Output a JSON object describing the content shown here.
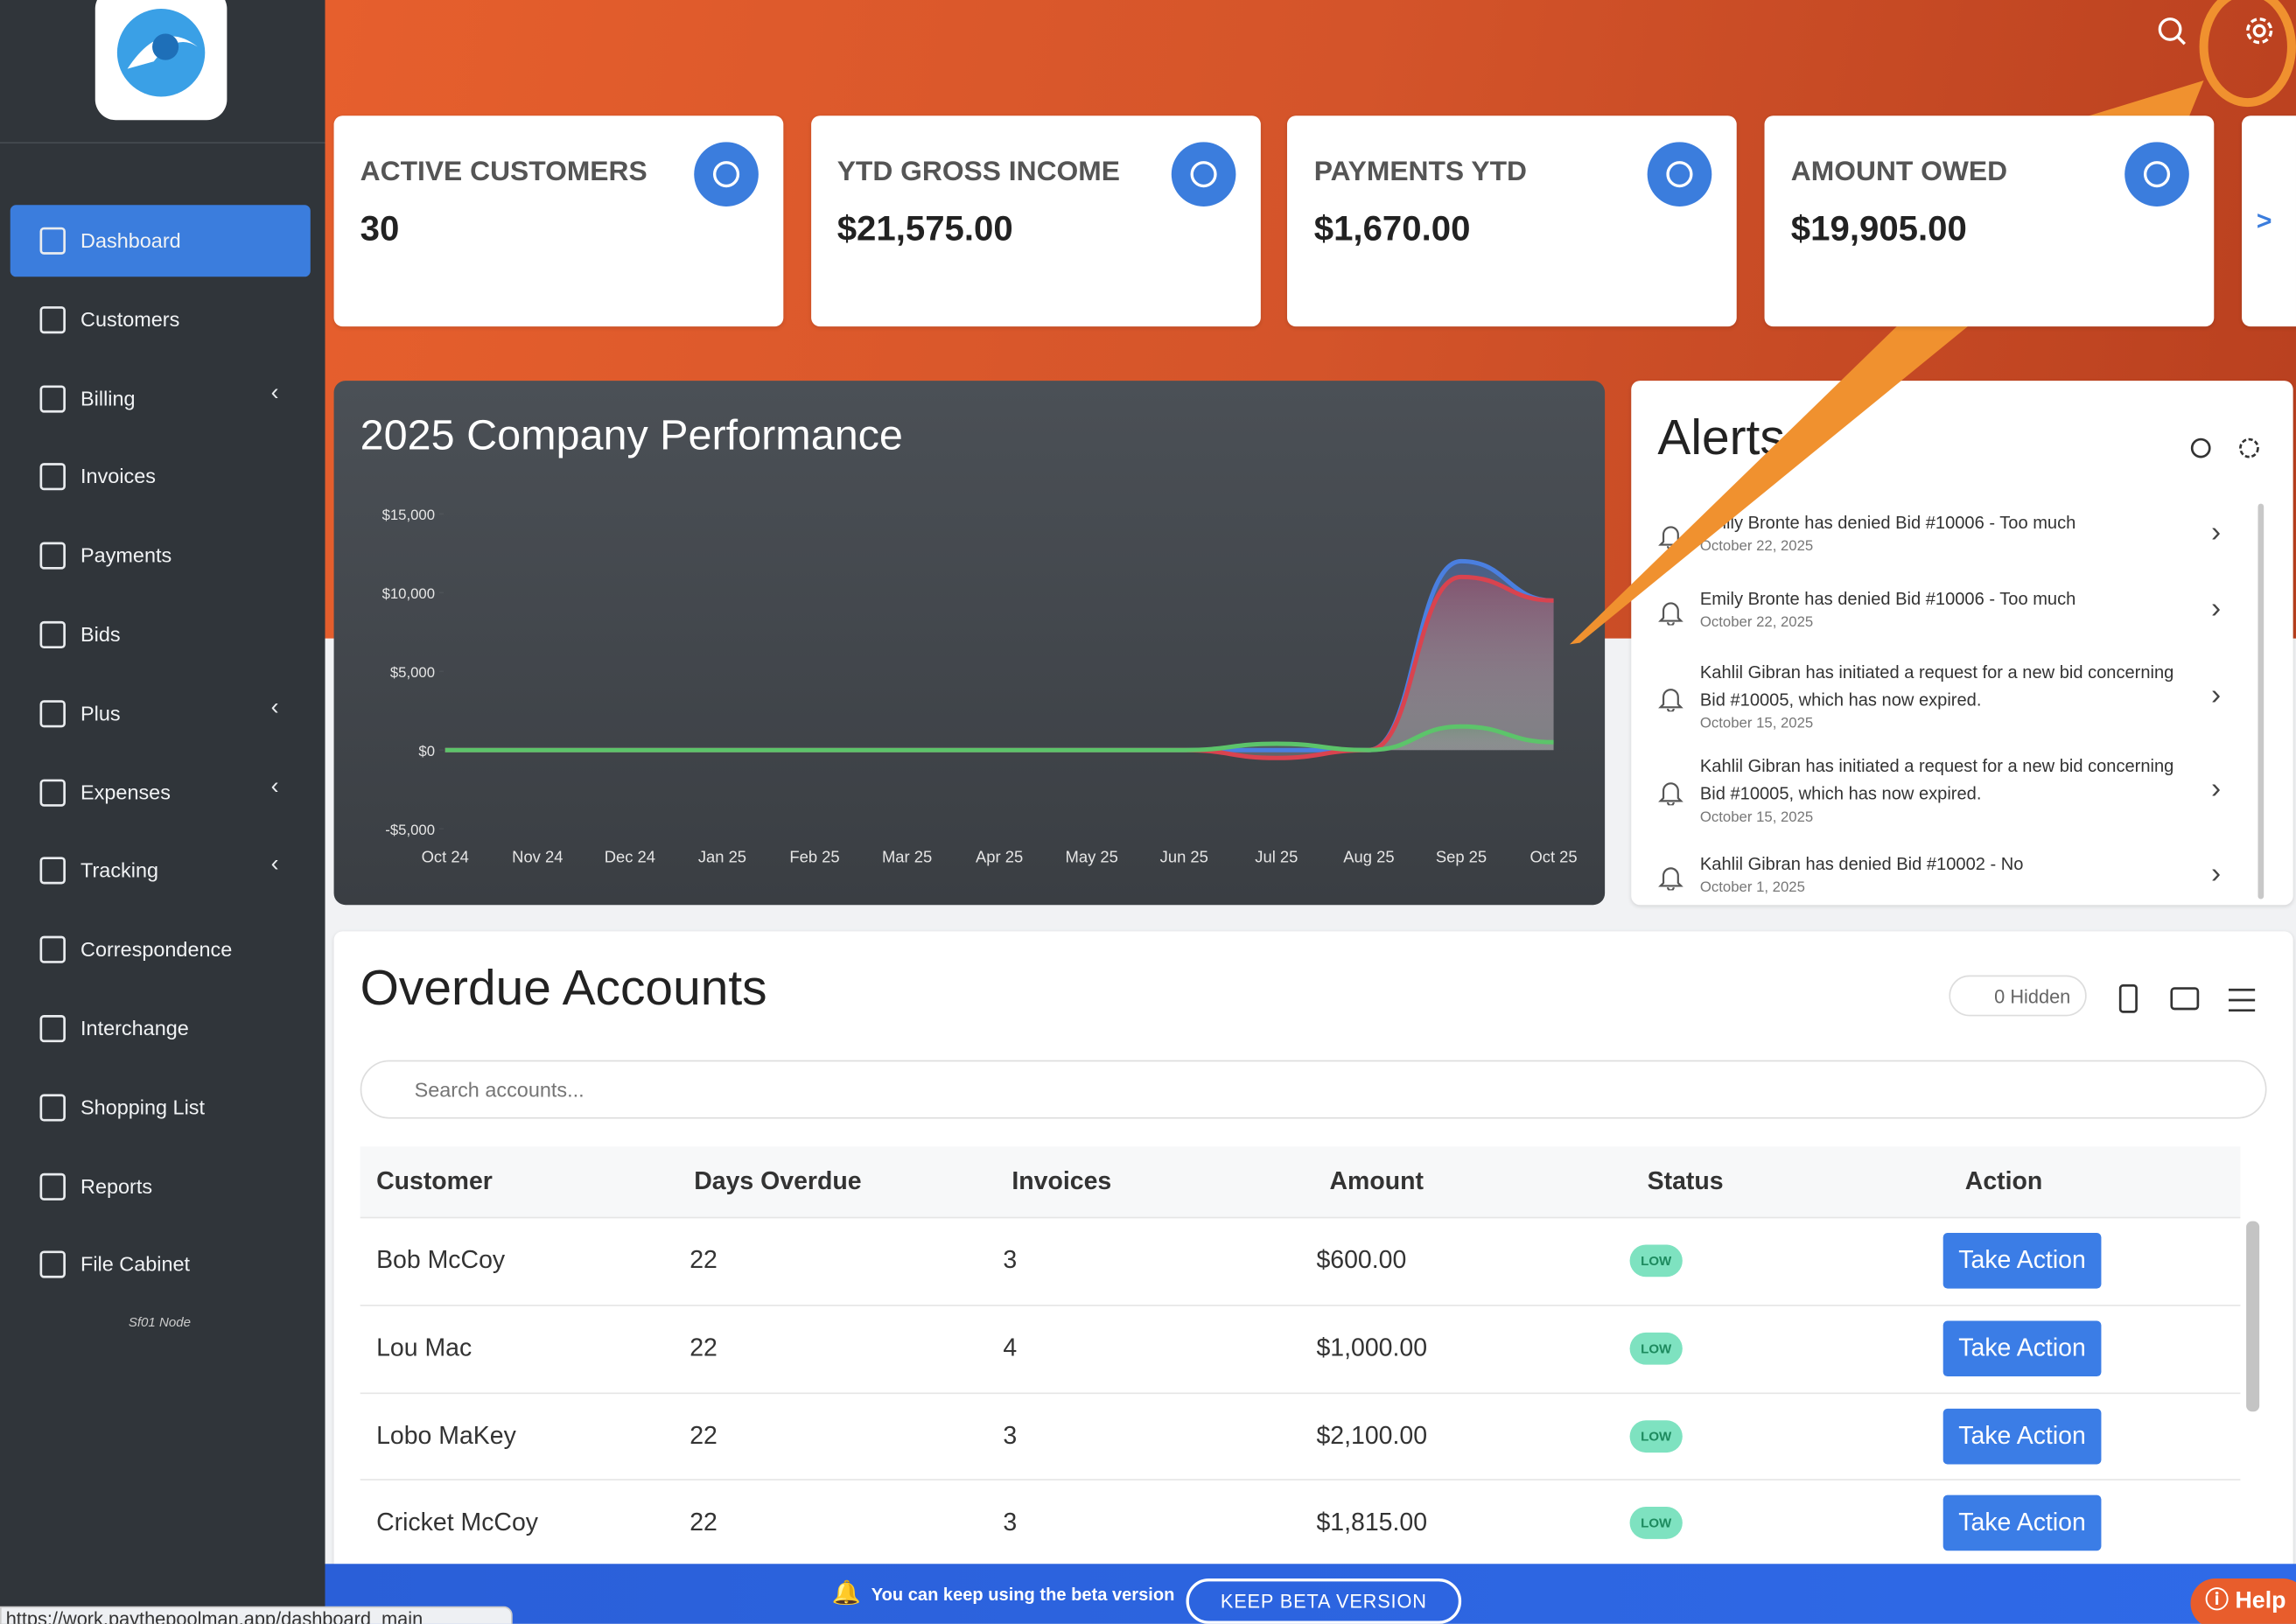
{
  "sidebar": {
    "items": [
      {
        "label": "Dashboard",
        "has_submenu": false,
        "active": true
      },
      {
        "label": "Customers",
        "has_submenu": false
      },
      {
        "label": "Billing",
        "has_submenu": true
      },
      {
        "label": "Invoices",
        "has_submenu": false
      },
      {
        "label": "Payments",
        "has_submenu": false
      },
      {
        "label": "Bids",
        "has_submenu": false
      },
      {
        "label": "Plus",
        "has_submenu": true
      },
      {
        "label": "Expenses",
        "has_submenu": true
      },
      {
        "label": "Tracking",
        "has_submenu": true
      },
      {
        "label": "Correspondence",
        "has_submenu": false
      },
      {
        "label": "Interchange",
        "has_submenu": false
      },
      {
        "label": "Shopping List",
        "has_submenu": false
      },
      {
        "label": "Reports",
        "has_submenu": false
      },
      {
        "label": "File Cabinet",
        "has_submenu": false
      }
    ],
    "footer": "Sf01 Node"
  },
  "cards": [
    {
      "label": "ACTIVE CUSTOMERS",
      "value": "30"
    },
    {
      "label": "YTD GROSS INCOME",
      "value": "$21,575.00"
    },
    {
      "label": "PAYMENTS YTD",
      "value": "$1,670.00"
    },
    {
      "label": "AMOUNT OWED",
      "value": "$19,905.00"
    }
  ],
  "cards_more": ">",
  "chart_data": {
    "type": "area",
    "title": "2025 Company Performance",
    "categories": [
      "Oct 24",
      "Nov 24",
      "Dec 24",
      "Jan 25",
      "Feb 25",
      "Mar 25",
      "Apr 25",
      "May 25",
      "Jun 25",
      "Jul 25",
      "Aug 25",
      "Sep 25",
      "Oct 25"
    ],
    "series": [
      {
        "color": "#4a7fe0",
        "values": [
          0,
          0,
          0,
          0,
          0,
          0,
          0,
          0,
          0,
          0,
          0,
          12000,
          9500
        ]
      },
      {
        "color": "#d9434f",
        "values": [
          0,
          0,
          0,
          0,
          0,
          0,
          0,
          0,
          0,
          -500,
          0,
          11000,
          9500
        ]
      },
      {
        "color": "#5cc46a",
        "values": [
          0,
          0,
          0,
          0,
          0,
          0,
          0,
          0,
          0,
          400,
          0,
          1500,
          500
        ]
      }
    ],
    "ylim": [
      -5000,
      15000
    ],
    "yticks": [
      {
        "value": -5000,
        "label": "-$5,000"
      },
      {
        "value": 0,
        "label": "$0"
      },
      {
        "value": 5000,
        "label": "$5,000"
      },
      {
        "value": 10000,
        "label": "$10,000"
      },
      {
        "value": 15000,
        "label": "$15,000"
      }
    ],
    "grid": false
  },
  "alerts": {
    "title": "Alerts",
    "items": [
      {
        "text": "Emily Bronte has denied Bid #10006 - Too much",
        "date": "October 22, 2025"
      },
      {
        "text": "Emily Bronte has denied Bid #10006 - Too much",
        "date": "October 22, 2025"
      },
      {
        "text": "Kahlil Gibran has initiated a request for a new bid concerning Bid #10005, which has now expired.",
        "date": "October 15, 2025"
      },
      {
        "text": "Kahlil Gibran has initiated a request for a new bid concerning Bid #10005, which has now expired.",
        "date": "October 15, 2025"
      },
      {
        "text": "Kahlil Gibran has denied Bid #10002 - No",
        "date": "October 1, 2025"
      }
    ]
  },
  "overdue": {
    "title": "Overdue Accounts",
    "hidden": "0 Hidden",
    "search_placeholder": "Search accounts...",
    "columns": [
      "Customer",
      "Days Overdue",
      "Invoices",
      "Amount",
      "Status",
      "Action"
    ],
    "rows": [
      [
        "Bob McCoy",
        "22",
        "3",
        "$600.00",
        "LOW",
        "Take Action"
      ],
      [
        "Lou Mac",
        "22",
        "4",
        "$1,000.00",
        "LOW",
        "Take Action"
      ],
      [
        "Lobo MaKey",
        "22",
        "3",
        "$2,100.00",
        "LOW",
        "Take Action"
      ],
      [
        "Cricket McCoy",
        "22",
        "3",
        "$1,815.00",
        "LOW",
        "Take Action"
      ]
    ]
  },
  "banner": {
    "message": "You can keep using the beta version",
    "button": "KEEP BETA VERSION"
  },
  "help": "Help",
  "status_url": "https://work.paythepoolman.app/dashboard_main"
}
